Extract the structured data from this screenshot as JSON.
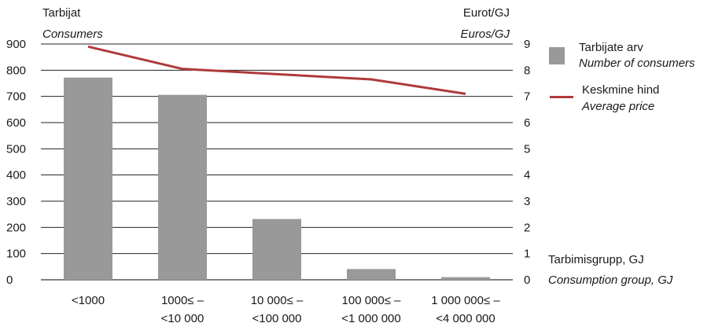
{
  "chart_data": {
    "type": "bar",
    "categories": [
      [
        "<1000",
        ""
      ],
      [
        "1000≤ –",
        "<10 000"
      ],
      [
        "10 000≤ –",
        "<100 000"
      ],
      [
        "100 000≤ –",
        "<1 000 000"
      ],
      [
        "1 000 000≤ –",
        "<4 000 000"
      ]
    ],
    "series": [
      {
        "name": "Tarbijate arv",
        "name_en": "Number of consumers",
        "type": "bar",
        "axis": "left",
        "values": [
          772,
          706,
          232,
          41,
          10
        ],
        "color": "#999999"
      },
      {
        "name": "Keskmine hind",
        "name_en": "Average price",
        "type": "line",
        "axis": "right",
        "values": [
          8.9,
          8.05,
          7.85,
          7.65,
          7.1
        ],
        "color": "#b03a3a"
      }
    ],
    "y_left": {
      "label": "Tarbijat",
      "label_en": "Consumers",
      "min": 0,
      "max": 900,
      "step": 100
    },
    "y_right": {
      "label": "Eurot/GJ",
      "label_en": "Euros/GJ",
      "min": 0,
      "max": 9,
      "step": 1
    },
    "x_axis": {
      "label": "Tarbimisgrupp, GJ",
      "label_en": "Consumption group, GJ"
    },
    "grid": true,
    "legend_position": "right"
  }
}
